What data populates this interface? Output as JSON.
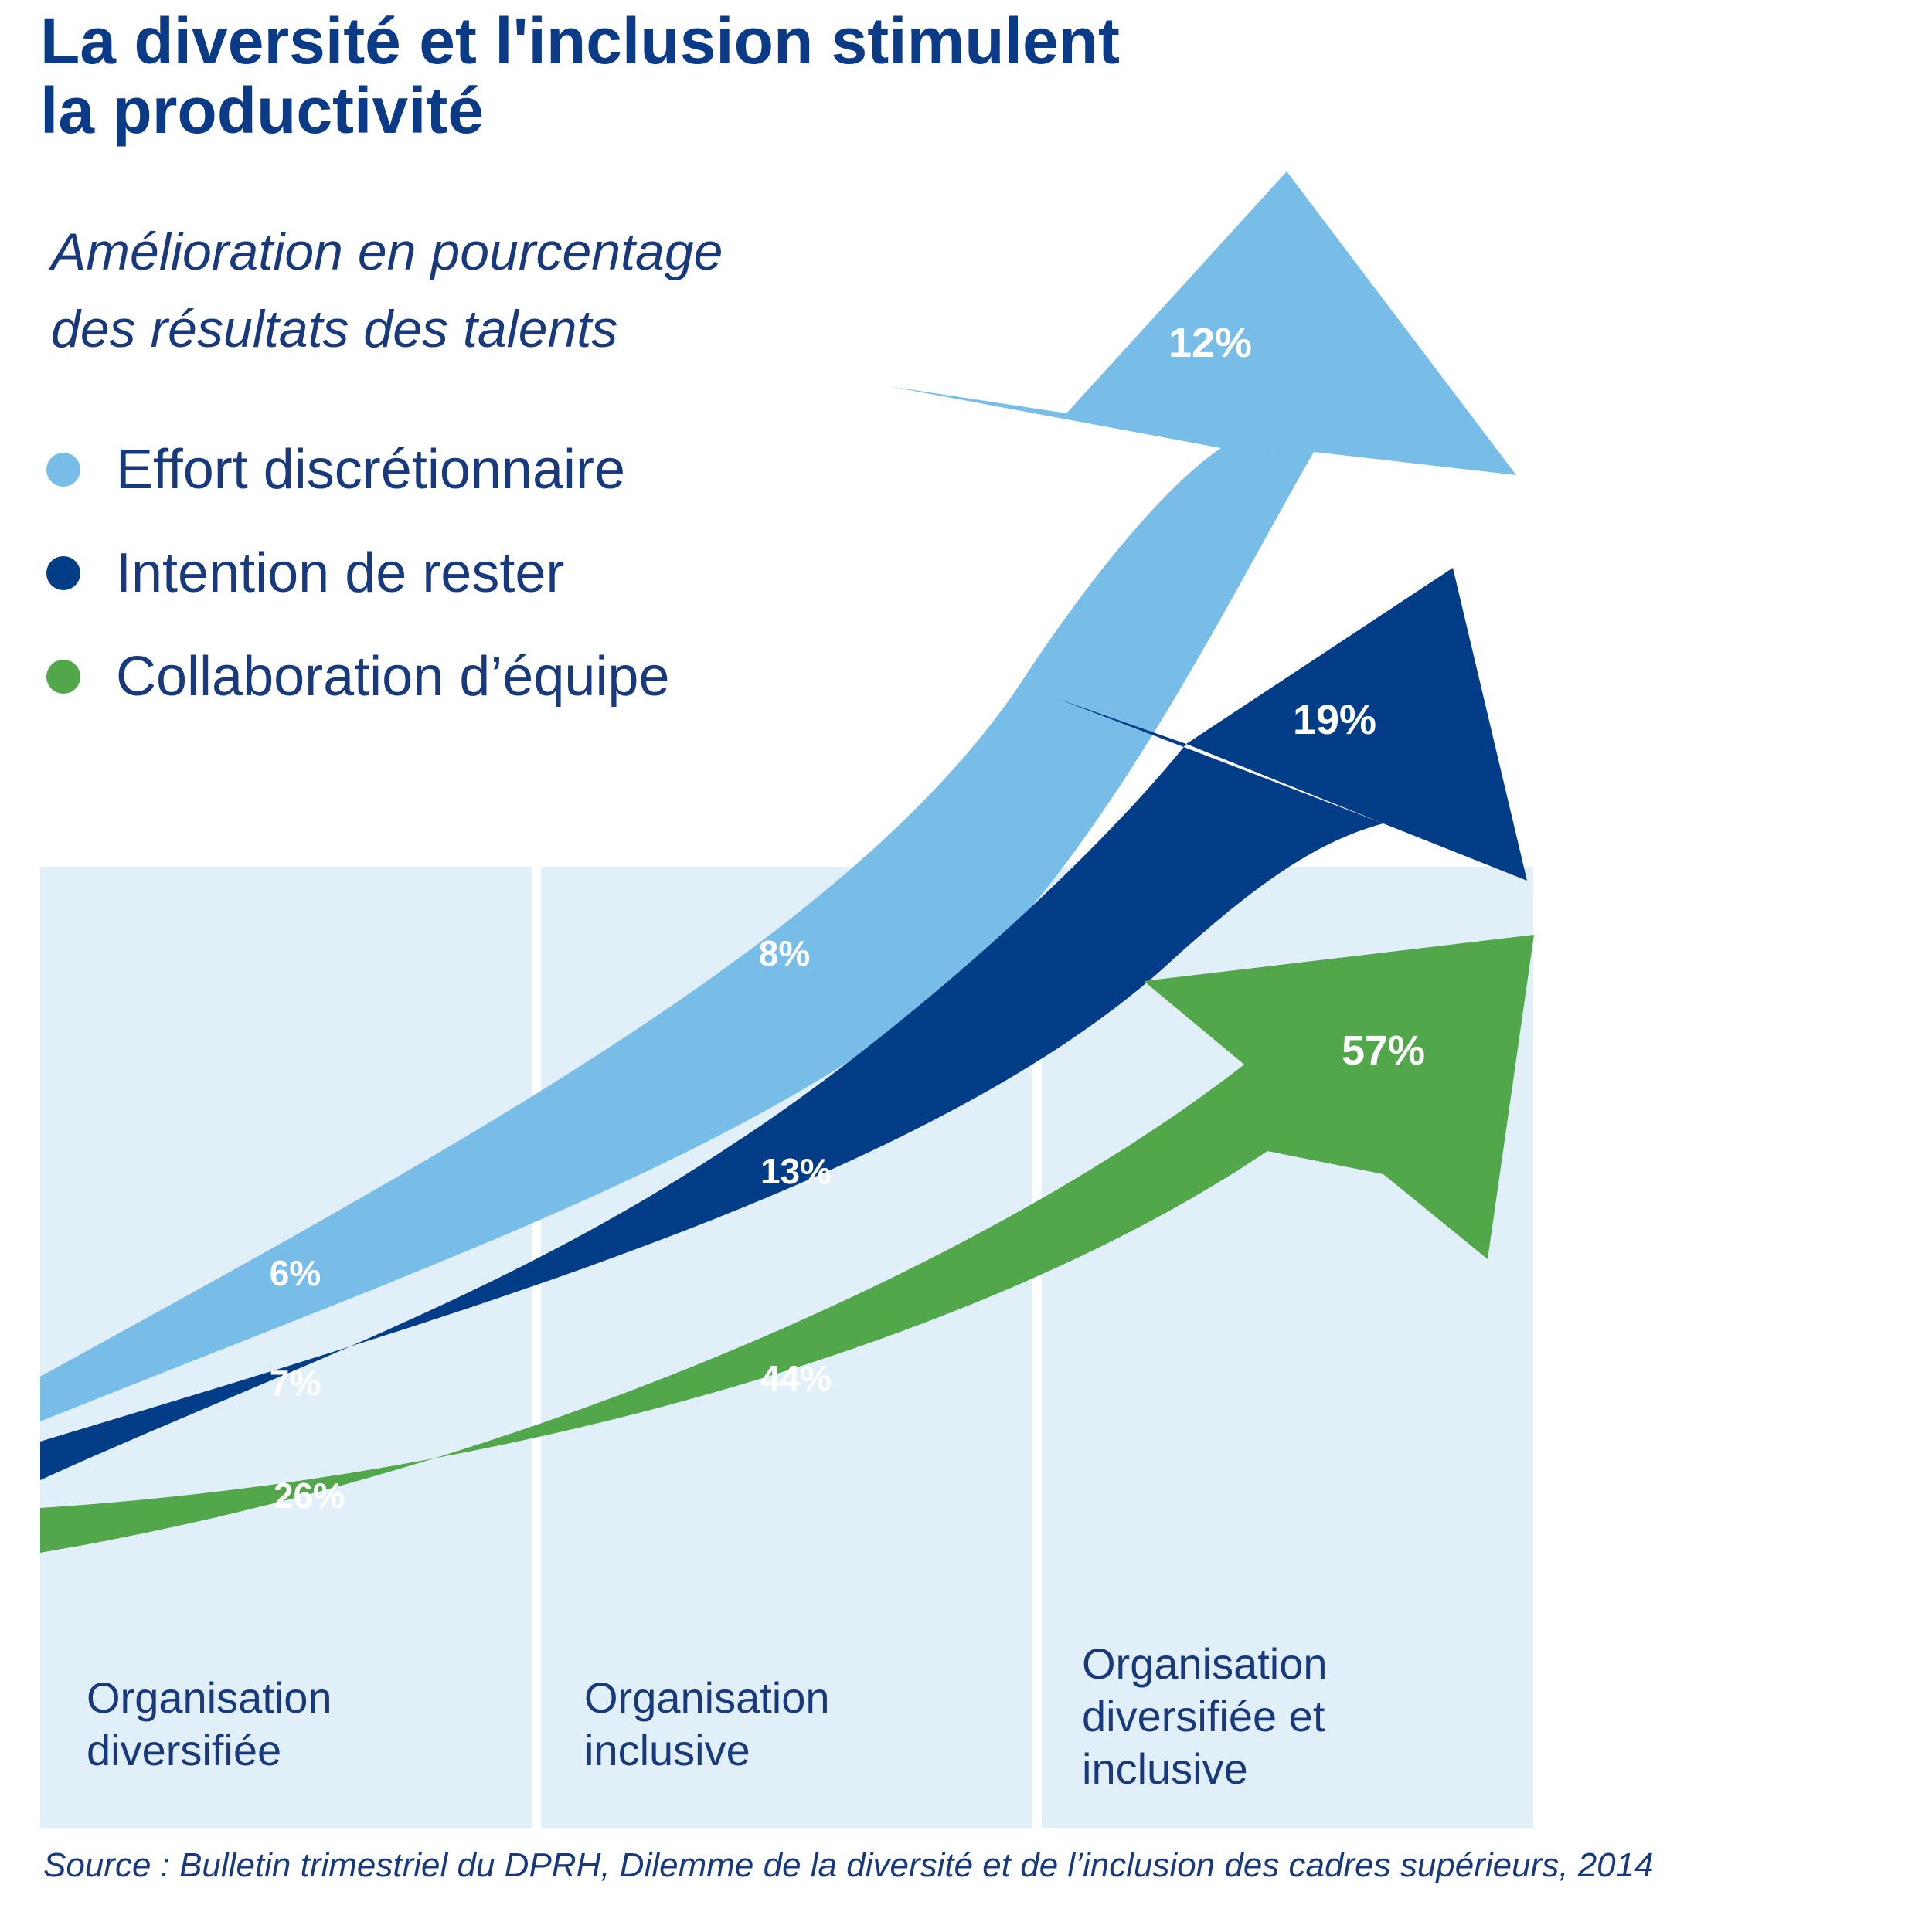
{
  "title_lines": [
    "La diversité et l'inclusion stimulent",
    "la productivité"
  ],
  "subtitle_lines": [
    "Amélioration en pourcentage",
    "des résultats des talents"
  ],
  "legend": [
    {
      "label": "Effort discrétionnaire",
      "color": "#78bce8"
    },
    {
      "label": "Intention de rester",
      "color": "#033c87"
    },
    {
      "label": "Collaboration d’équipe",
      "color": "#53a74b"
    }
  ],
  "chart_data": {
    "type": "area",
    "categories": [
      "Organisation diversifiée",
      "Organisation inclusive",
      "Organisation diversifiée et inclusive"
    ],
    "series": [
      {
        "name": "Effort discrétionnaire",
        "values": [
          6,
          8,
          12
        ],
        "value_labels": [
          "6%",
          "8%",
          "12%"
        ],
        "color": "#78bce8"
      },
      {
        "name": "Intention de rester",
        "values": [
          7,
          13,
          19
        ],
        "value_labels": [
          "7%",
          "13%",
          "19%"
        ],
        "color": "#033c87"
      },
      {
        "name": "Collaboration d’équipe",
        "values": [
          26,
          44,
          57
        ],
        "value_labels": [
          "26%",
          "44%",
          "57%"
        ],
        "color": "#53a74b"
      }
    ],
    "category_panel_color": "#e1eff9",
    "unit": "%"
  },
  "source": "Source : Bulletin trimestriel du DPRH, Dilemme de la diversité et de l’inclusion des cadres supérieurs, 2014"
}
